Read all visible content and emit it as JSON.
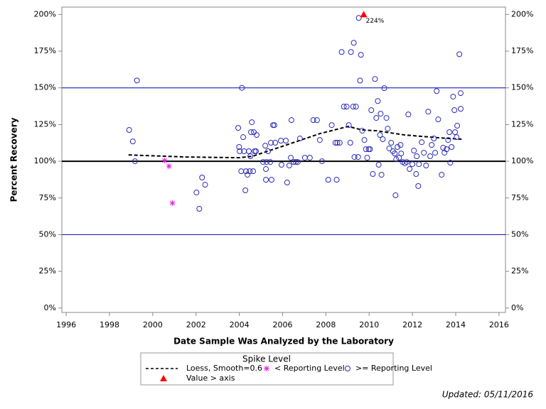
{
  "chart_data": {
    "type": "scatter",
    "x_label": "Date Sample Was Analyzed by the Laboratory",
    "y_label": "Percent Recovery",
    "legend_title": "Spike Level",
    "footnote": "Updated: 05/11/2016",
    "xlim": [
      1995.8,
      2016.3
    ],
    "xticks": [
      1996,
      1998,
      2000,
      2002,
      2004,
      2006,
      2008,
      2010,
      2012,
      2014,
      2016
    ],
    "ylim": [
      -3,
      205
    ],
    "yticks": [
      {
        "value": 0,
        "label": "0%"
      },
      {
        "value": 25,
        "label": "25%"
      },
      {
        "value": 50,
        "label": "50%"
      },
      {
        "value": 75,
        "label": "75%"
      },
      {
        "value": 100,
        "label": "100%"
      },
      {
        "value": 125,
        "label": "125%"
      },
      {
        "value": 150,
        "label": "150%"
      },
      {
        "value": 175,
        "label": "175%"
      },
      {
        "value": 200,
        "label": "200%"
      }
    ],
    "reference_lines": [
      {
        "value": 50,
        "color": "#0000b0"
      },
      {
        "value": 100,
        "color": "#000000"
      },
      {
        "value": 150,
        "color": "#0000b0"
      }
    ],
    "series": [
      {
        "name": "Loess, Smooth=0.6",
        "style": "dashed",
        "color": "#000000",
        "x": [
          1998.88,
          2001.5,
          2003.99,
          2004.61,
          2006.08,
          2007.72,
          2009.03,
          2009.68,
          2010.33,
          2011.64,
          2013.28,
          2014.27
        ],
        "values": [
          104.3,
          102.9,
          102.4,
          103.4,
          110.6,
          118.8,
          123.7,
          121.3,
          120.8,
          117.9,
          115.9,
          115
        ]
      },
      {
        "name": "< Reporting Level",
        "marker": "asterisk",
        "color": "#e020e0",
        "x": [
          2000.55,
          2000.75,
          2000.91
        ],
        "values": [
          100.5,
          96.6,
          71.5
        ]
      },
      {
        "name": ">= Reporting Level",
        "marker": "circle",
        "color": "#2a2ab8",
        "x": [
          1998.91,
          1999.08,
          1999.18,
          1999.27,
          2002.02,
          2002.15,
          2002.28,
          2002.42,
          2003.95,
          2003.99,
          2004.02,
          2004.09,
          2004.12,
          2004.18,
          2004.22,
          2004.28,
          2004.31,
          2004.38,
          2004.44,
          2004.48,
          2004.51,
          2004.54,
          2004.58,
          2004.64,
          2004.67,
          2004.71,
          2004.77,
          2004.8,
          2005.1,
          2005.2,
          2005.23,
          2005.23,
          2005.26,
          2005.33,
          2005.43,
          2005.46,
          2005.49,
          2005.56,
          2005.62,
          2005.66,
          2005.92,
          2005.95,
          2006.15,
          2006.21,
          2006.31,
          2006.38,
          2006.41,
          2006.51,
          2006.61,
          2006.7,
          2006.8,
          2007.03,
          2007.26,
          2007.42,
          2007.59,
          2007.72,
          2007.82,
          2008.11,
          2008.27,
          2008.44,
          2008.53,
          2008.64,
          2008.5,
          2008.73,
          2008.83,
          2008.96,
          2009.06,
          2009.13,
          2009.16,
          2009.26,
          2009.29,
          2009.32,
          2009.39,
          2009.49,
          2009.52,
          2009.58,
          2009.62,
          2009.68,
          2009.78,
          2009.85,
          2009.91,
          2009.98,
          2010.04,
          2010.1,
          2010.17,
          2010.27,
          2010.33,
          2010.4,
          2010.44,
          2010.5,
          2010.53,
          2010.57,
          2010.63,
          2010.7,
          2010.8,
          2010.86,
          2010.93,
          2011.02,
          2011.1,
          2011.18,
          2011.22,
          2011.25,
          2011.31,
          2011.38,
          2011.45,
          2011.48,
          2011.55,
          2011.65,
          2011.74,
          2011.81,
          2011.87,
          2012,
          2012.07,
          2012.17,
          2012.2,
          2012.27,
          2012.3,
          2012.43,
          2012.53,
          2012.63,
          2012.73,
          2012.82,
          2012.89,
          2012.99,
          2013.05,
          2013.12,
          2013.19,
          2013.35,
          2013.42,
          2013.48,
          2013.58,
          2013.65,
          2013.71,
          2013.75,
          2013.81,
          2013.88,
          2013.94,
          2013.97,
          2014.04,
          2014.07,
          2014.17,
          2014.23,
          2014.23
        ],
        "values": [
          121.3,
          113.5,
          100,
          155,
          78.7,
          67.6,
          88.9,
          84,
          122.7,
          109.7,
          106.8,
          93.2,
          150,
          116.4,
          106.8,
          80.2,
          93.2,
          90.8,
          106.8,
          93.2,
          103.4,
          119.8,
          126.6,
          93.2,
          119.8,
          106.8,
          106.8,
          117.9,
          99.5,
          110.6,
          94.7,
          87.4,
          99.5,
          106.8,
          99.5,
          112.6,
          87.4,
          124.6,
          124.6,
          112.6,
          114,
          97.6,
          114,
          85.5,
          97.1,
          102.4,
          128,
          99.5,
          99.5,
          99.5,
          115.5,
          102.4,
          102.4,
          128,
          128,
          114.5,
          100,
          87.4,
          124.6,
          112.6,
          112.6,
          112.6,
          87.4,
          174.4,
          137.2,
          137.2,
          124.6,
          112.6,
          174.4,
          137.2,
          180.7,
          102.9,
          137.2,
          102.9,
          197.6,
          155,
          172.5,
          120.8,
          114.5,
          108.2,
          102.4,
          108.2,
          108.2,
          134.8,
          91.3,
          156,
          129.5,
          141,
          97.6,
          117.9,
          132.4,
          90.8,
          115,
          149.8,
          129.5,
          122.2,
          108.7,
          112.6,
          106.8,
          105.3,
          76.8,
          101.4,
          109.7,
          102.4,
          111.1,
          105.3,
          99.5,
          98.6,
          99.5,
          131.9,
          94.7,
          98,
          107.2,
          91.3,
          103.4,
          83.1,
          98,
          113,
          105.8,
          97.1,
          133.8,
          103.4,
          111.1,
          115.5,
          105.8,
          147.8,
          128.5,
          90.8,
          109.2,
          105.8,
          108.2,
          114.5,
          119.8,
          99,
          109.7,
          144,
          134.8,
          119.8,
          116.4,
          124.2,
          172.9,
          146.4,
          135.7
        ]
      },
      {
        "name": "Value > axis",
        "marker": "triangle",
        "color": "#ff0000",
        "x": [
          2009.75
        ],
        "values": [
          224
        ],
        "value_labels": [
          "224%"
        ]
      }
    ]
  }
}
